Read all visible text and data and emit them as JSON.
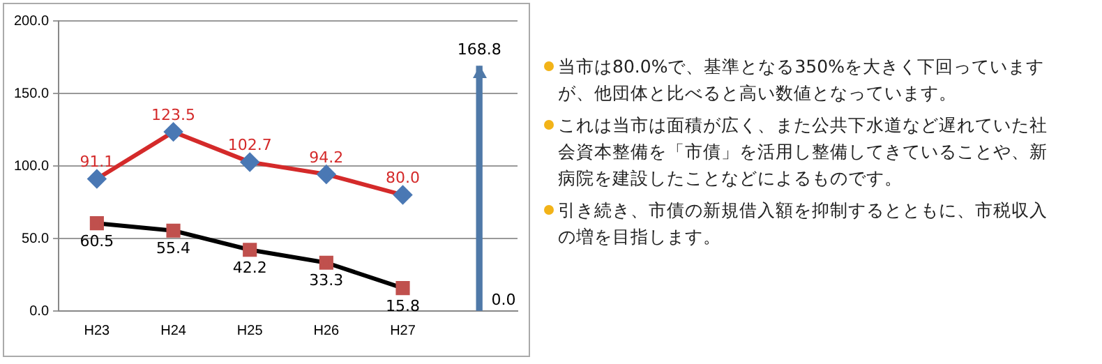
{
  "chart_data": {
    "type": "line",
    "categories": [
      "H23",
      "H24",
      "H25",
      "H26",
      "H27",
      null
    ],
    "series": [
      {
        "color": "#d42a2a",
        "colors": [
          "#4a78b4",
          "#4a78b4",
          "#4a78b4",
          "#4a78b4",
          "#4a78b4",
          null
        ],
        "marker": "diamond",
        "values": [
          91.1,
          123.5,
          102.7,
          94.2,
          80.0,
          null
        ],
        "value_labels": [
          "91.1",
          "123.5",
          "102.7",
          "94.2",
          "80.0",
          null
        ]
      },
      {
        "color": "#000000",
        "colors": [
          "#c0504d",
          "#c0504d",
          "#c0504d",
          "#c0504d",
          "#c0504d",
          null
        ],
        "marker": "square",
        "values": [
          60.5,
          55.4,
          42.2,
          33.3,
          15.8,
          null
        ],
        "value_labels": [
          "60.5",
          "55.4",
          "42.2",
          "33.3",
          "15.8",
          null
        ]
      },
      {
        "type": "bar",
        "color": "#4f79a8",
        "values": [
          null,
          null,
          null,
          null,
          null,
          168.8
        ],
        "value_labels": [
          null,
          null,
          null,
          null,
          null,
          "168.8"
        ]
      }
    ],
    "ylim": [
      0,
      200
    ],
    "yticks": [
      {
        "value": 0,
        "label": "0.0"
      },
      {
        "value": 50,
        "label": "50.0"
      },
      {
        "value": 100,
        "label": "100.0"
      },
      {
        "value": 150,
        "label": "150.0"
      },
      {
        "value": 200,
        "label": "200.0"
      }
    ],
    "grid": "y",
    "legend": false,
    "data_labels": true,
    "annotations": [
      "0.0",
      "当市は80.0%で、基準となる350%を大きく下回っていますが、他団体と比べると高い数値となっています。",
      "これは当市は面積が広く、また公共下水道など遅れていた社会資本整備を「市債」を活用し整備してきていることや、新病院を建設したことなどによるものです。",
      "引き続き、市債の新規借入額を抑制するとともに、市税収入の増を目指します。"
    ]
  }
}
